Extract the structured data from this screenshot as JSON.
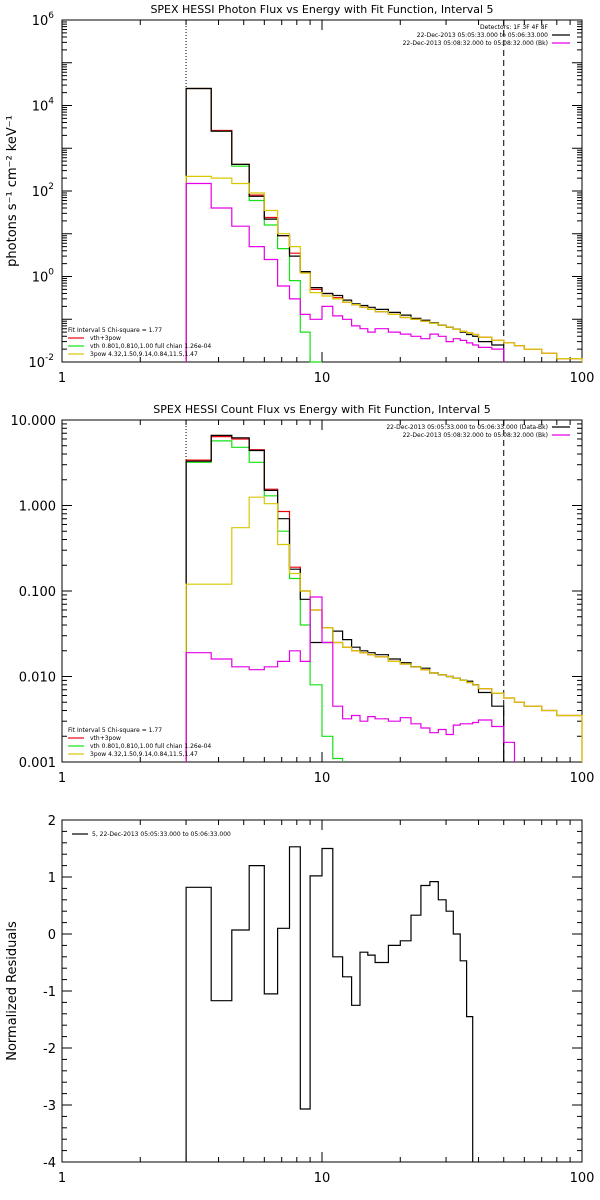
{
  "colors": {
    "data_black": "#000000",
    "total_red": "#e8000b",
    "thermal_green": "#16e016",
    "powerlaw_yellow": "#d8c800",
    "background_magenta": "#e600e6"
  },
  "chart_data": [
    {
      "type": "line",
      "step": true,
      "title": "SPEX HESSI Photon Flux vs Energy with Fit Function, Interval 5",
      "xlabel": "",
      "ylabel": "photons s⁻¹ cm⁻² keV⁻¹",
      "xscale": "log",
      "yscale": "log",
      "xlim": [
        1,
        100
      ],
      "ylim": [
        0.01,
        1000000
      ],
      "xticks": [
        {
          "v": 1,
          "label": "1"
        },
        {
          "v": 10,
          "label": "10"
        },
        {
          "v": 100,
          "label": "100"
        }
      ],
      "yticks": [
        {
          "v": 0.01,
          "base": "10",
          "exp": "-2"
        },
        {
          "v": 1,
          "base": "10",
          "exp": "0"
        },
        {
          "v": 100,
          "base": "10",
          "exp": "2"
        },
        {
          "v": 10000,
          "base": "10",
          "exp": "4"
        },
        {
          "v": 1000000,
          "base": "10",
          "exp": "6"
        }
      ],
      "vlines": [
        {
          "x": 3,
          "style": "dotted"
        },
        {
          "x": 50,
          "style": "dashed"
        }
      ],
      "legend_top": [
        {
          "text": "Detectors: 1F 3F 4F 8F",
          "color": ""
        },
        {
          "text": "22-Dec-2013 05:05:33.000 to 05:06:33.000",
          "color": "#000000"
        },
        {
          "text": "22-Dec-2013 05:08:32.000 to 05:08:32.000 (Bk)",
          "color": "#e600e6"
        }
      ],
      "legend_bottom_header": "Fit Interval 5   Chi-square = 1.77",
      "legend_bottom": [
        {
          "text": "vth+3pow",
          "color": "#e8000b"
        },
        {
          "text": "vth 0.801,0.810,1.00  full chian 1.26e-04",
          "color": "#16e016"
        },
        {
          "text": "3pow 4.32,1.50,9.14,0.84,11.5,1.47",
          "color": "#d8c800"
        }
      ],
      "edges": [
        3,
        3.75,
        4.5,
        5.25,
        6,
        6.75,
        7.5,
        8.25,
        9,
        10,
        11,
        12,
        13,
        14,
        15,
        16,
        18,
        20,
        22,
        24,
        26,
        28,
        30,
        32,
        34,
        36,
        38,
        40,
        45,
        50,
        55,
        60,
        70,
        80,
        100
      ],
      "series": [
        {
          "color": "#16e016",
          "values": [
            25000,
            2500,
            380,
            60,
            16,
            4.5,
            0.8,
            0.05,
            0.01
          ]
        },
        {
          "color": "#e8000b",
          "values": [
            25000,
            2600,
            420,
            80,
            24,
            9,
            3.5,
            1.3,
            0.5,
            0.4,
            0.32,
            0.25,
            0.22,
            0.19,
            0.17,
            0.15,
            0.13,
            0.11,
            0.1,
            0.09,
            0.08,
            0.072,
            0.065,
            0.058,
            0.052,
            0.048,
            0.044,
            0.038,
            0.032,
            0.028,
            0.024,
            0.02,
            0.016,
            0.012
          ]
        },
        {
          "color": "#000000",
          "values": [
            25000,
            2500,
            420,
            75,
            22,
            9,
            3,
            1.3,
            0.55,
            0.4,
            0.36,
            0.28,
            0.23,
            0.21,
            0.19,
            0.17,
            0.145,
            0.125,
            0.105,
            0.095,
            0.082,
            0.072,
            0.065,
            0.058,
            0.05,
            0.044,
            0.04,
            0.03,
            0.025
          ]
        },
        {
          "color": "#d8c800",
          "values": [
            220,
            200,
            150,
            90,
            35,
            10,
            5,
            1.2,
            0.42,
            0.35,
            0.3,
            0.25,
            0.22,
            0.19,
            0.17,
            0.15,
            0.13,
            0.11,
            0.1,
            0.09,
            0.08,
            0.072,
            0.065,
            0.058,
            0.052,
            0.048,
            0.044,
            0.038,
            0.032,
            0.028,
            0.024,
            0.02,
            0.016,
            0.012
          ]
        },
        {
          "color": "#e600e6",
          "values": [
            150,
            40,
            15,
            5,
            2.5,
            0.6,
            0.3,
            0.13,
            0.1,
            0.2,
            0.12,
            0.1,
            0.07,
            0.06,
            0.05,
            0.06,
            0.05,
            0.045,
            0.04,
            0.035,
            0.045,
            0.04,
            0.03,
            0.035,
            0.032,
            0.028,
            0.025,
            0.022,
            0.02
          ]
        }
      ]
    },
    {
      "type": "line",
      "step": true,
      "title": "SPEX HESSI Count Flux vs Energy with Fit Function, Interval 5",
      "xlabel": "",
      "ylabel": "",
      "xscale": "log",
      "yscale": "log",
      "xlim": [
        1,
        100
      ],
      "ylim": [
        0.001,
        10
      ],
      "xticks": [
        {
          "v": 1,
          "label": "1"
        },
        {
          "v": 10,
          "label": "10"
        },
        {
          "v": 100,
          "label": "100"
        }
      ],
      "yticks": [
        {
          "v": 0.001,
          "label": "0.001"
        },
        {
          "v": 0.01,
          "label": "0.010"
        },
        {
          "v": 0.1,
          "label": "0.100"
        },
        {
          "v": 1,
          "label": "1.000"
        },
        {
          "v": 10,
          "label": "10.000"
        }
      ],
      "vlines": [
        {
          "x": 3,
          "style": "dotted"
        },
        {
          "x": 50,
          "style": "dashed"
        }
      ],
      "legend_top": [
        {
          "text": "22-Dec-2013 05:05:33.000 to 05:06:33.000 (Data-Bk)",
          "color": "#000000"
        },
        {
          "text": "22-Dec-2013 05:08:32.000 to 05:08:32.000 (Bk)",
          "color": "#e600e6"
        }
      ],
      "legend_bottom_header": "Fit Interval 5   Chi-square = 1.77",
      "legend_bottom": [
        {
          "text": "vth+3pow",
          "color": "#e8000b"
        },
        {
          "text": "vth 0.801,0.810,1.00  full chian 1.26e-04",
          "color": "#16e016"
        },
        {
          "text": "3pow 4.32,1.50,9.14,0.84,11.5,1.47",
          "color": "#d8c800"
        }
      ],
      "edges": [
        3,
        3.75,
        4.5,
        5.25,
        6,
        6.75,
        7.5,
        8.25,
        9,
        10,
        11,
        12,
        13,
        14,
        15,
        16,
        18,
        20,
        22,
        24,
        26,
        28,
        30,
        32,
        34,
        36,
        38,
        40,
        45,
        50,
        55,
        60,
        70,
        80,
        100
      ],
      "series": [
        {
          "color": "#16e016",
          "values": [
            3.2,
            5.7,
            4.8,
            3.2,
            1.3,
            0.5,
            0.14,
            0.04,
            0.008,
            0.002,
            0.0011
          ]
        },
        {
          "color": "#e8000b",
          "values": [
            3.4,
            6.4,
            6.0,
            4.5,
            1.55,
            0.85,
            0.19,
            0.1,
            0.06,
            0.037,
            0.025,
            0.022,
            0.02,
            0.019,
            0.018,
            0.017,
            0.015,
            0.014,
            0.013,
            0.012,
            0.011,
            0.0105,
            0.01,
            0.0095,
            0.009,
            0.0085,
            0.008,
            0.0072,
            0.0064,
            0.0056,
            0.005,
            0.0045,
            0.004,
            0.0035
          ]
        },
        {
          "color": "#000000",
          "values": [
            3.3,
            6.6,
            6.2,
            4.4,
            1.5,
            0.7,
            0.18,
            0.08,
            0.025,
            0.025,
            0.034,
            0.027,
            0.022,
            0.02,
            0.019,
            0.018,
            0.016,
            0.0145,
            0.013,
            0.0125,
            0.011,
            0.0105,
            0.01,
            0.0095,
            0.009,
            0.0088,
            0.008,
            0.0065,
            0.0045
          ]
        },
        {
          "color": "#d8c800",
          "values": [
            0.12,
            0.12,
            0.55,
            1.25,
            1.05,
            0.35,
            0.16,
            0.1,
            0.06,
            0.037,
            0.025,
            0.022,
            0.02,
            0.019,
            0.018,
            0.017,
            0.015,
            0.014,
            0.013,
            0.012,
            0.011,
            0.0105,
            0.01,
            0.0095,
            0.009,
            0.0085,
            0.008,
            0.0072,
            0.0064,
            0.0056,
            0.005,
            0.0045,
            0.004,
            0.0035
          ]
        },
        {
          "color": "#e600e6",
          "values": [
            0.019,
            0.016,
            0.013,
            0.012,
            0.013,
            0.015,
            0.02,
            0.015,
            0.085,
            0.025,
            0.0045,
            0.0032,
            0.0035,
            0.003,
            0.0034,
            0.0032,
            0.003,
            0.0033,
            0.0028,
            0.0025,
            0.0022,
            0.0024,
            0.0021,
            0.0027,
            0.0028,
            0.0028,
            0.0029,
            0.0031,
            0.0026,
            0.0017
          ]
        }
      ]
    },
    {
      "type": "line",
      "step": true,
      "title": "",
      "xlabel": "",
      "ylabel": "Normalized Residuals",
      "xscale": "log",
      "yscale": "linear",
      "xlim": [
        1,
        100
      ],
      "ylim": [
        -4,
        2
      ],
      "xticks": [
        {
          "v": 1,
          "label": "1"
        },
        {
          "v": 10,
          "label": "10"
        },
        {
          "v": 100,
          "label": "100"
        }
      ],
      "yticks": [
        {
          "v": -4,
          "label": "-4"
        },
        {
          "v": -3,
          "label": "-3"
        },
        {
          "v": -2,
          "label": "-2"
        },
        {
          "v": -1,
          "label": "-1"
        },
        {
          "v": 0,
          "label": "0"
        },
        {
          "v": 1,
          "label": "1"
        },
        {
          "v": 2,
          "label": "2"
        }
      ],
      "vlines": [],
      "legend_top_left": [
        {
          "text": "5, 22-Dec-2013 05:05:33.000 to 05:06:33.000",
          "color": "#000000"
        }
      ],
      "edges": [
        3,
        3.75,
        4.5,
        5.25,
        6,
        6.75,
        7.5,
        8.25,
        9,
        10,
        11,
        12,
        13,
        14,
        15,
        16,
        18,
        20,
        22,
        24,
        26,
        28,
        30,
        32,
        34,
        36,
        38,
        40,
        45,
        50
      ],
      "series": [
        {
          "color": "#000000",
          "values": [
            0.82,
            -1.17,
            0.07,
            1.2,
            -1.05,
            0.1,
            1.53,
            -3.07,
            1.02,
            1.5,
            -0.4,
            -0.75,
            -1.25,
            -0.32,
            -0.37,
            -0.5,
            -0.2,
            -0.12,
            0.33,
            0.85,
            0.92,
            0.6,
            0.4,
            0.0,
            -0.47,
            -1.45
          ]
        }
      ]
    }
  ]
}
